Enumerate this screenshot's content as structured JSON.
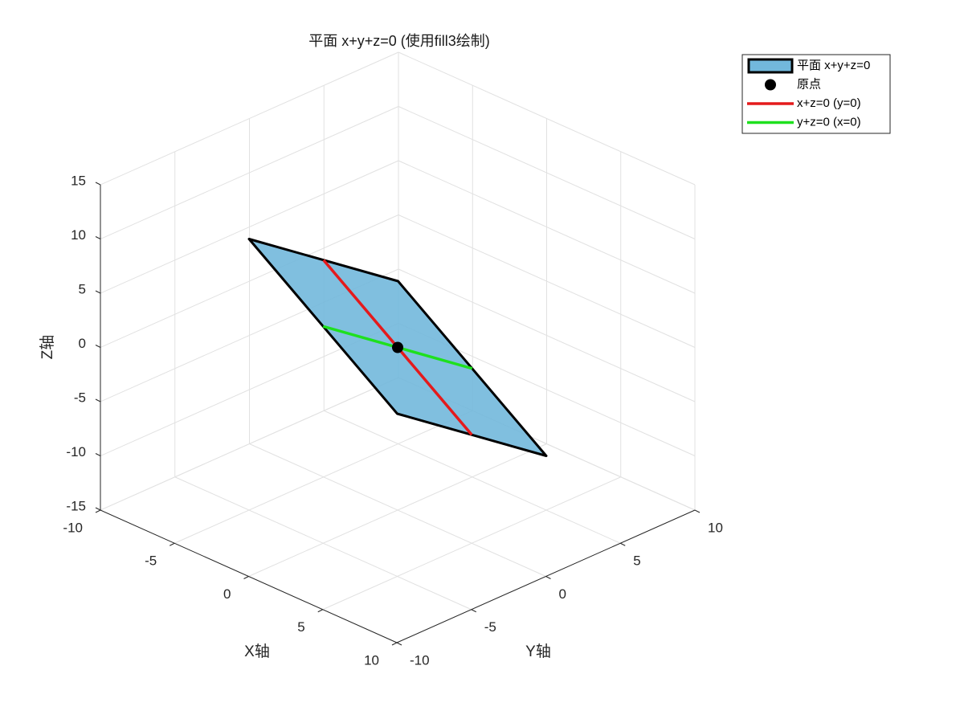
{
  "chart_data": {
    "type": "3d",
    "title": "平面 x+y+z=0 (使用fill3绘制)",
    "xlabel": "X轴",
    "ylabel": "Y轴",
    "zlabel": "Z轴",
    "xlim": [
      -10,
      10
    ],
    "ylim": [
      -10,
      10
    ],
    "zlim": [
      -15,
      15
    ],
    "xticks": [
      -10,
      -5,
      0,
      5,
      10
    ],
    "yticks": [
      -10,
      -5,
      0,
      5,
      10
    ],
    "zticks": [
      -15,
      -10,
      -5,
      0,
      5,
      10,
      15
    ],
    "grid": true,
    "legend": "upper right",
    "series": [
      {
        "name": "平面 x+y+z=0",
        "type": "fill",
        "color": "#72b8dc",
        "edgecolor": "#000000",
        "x": [
          -5,
          -5,
          5,
          5
        ],
        "y": [
          -5,
          5,
          5,
          -5
        ],
        "z": [
          10,
          0,
          -10,
          0
        ]
      },
      {
        "name": "原点",
        "type": "point",
        "color": "#000000",
        "x": [
          0
        ],
        "y": [
          0
        ],
        "z": [
          0
        ]
      },
      {
        "name": "x+z=0 (y=0)",
        "type": "line",
        "color": "#e41a1c",
        "x": [
          -5,
          5
        ],
        "y": [
          0,
          0
        ],
        "z": [
          5,
          -5
        ]
      },
      {
        "name": "y+z=0 (x=0)",
        "type": "line",
        "color": "#1ee01e",
        "x": [
          0,
          0
        ],
        "y": [
          -5,
          5
        ],
        "z": [
          5,
          -5
        ]
      }
    ]
  }
}
